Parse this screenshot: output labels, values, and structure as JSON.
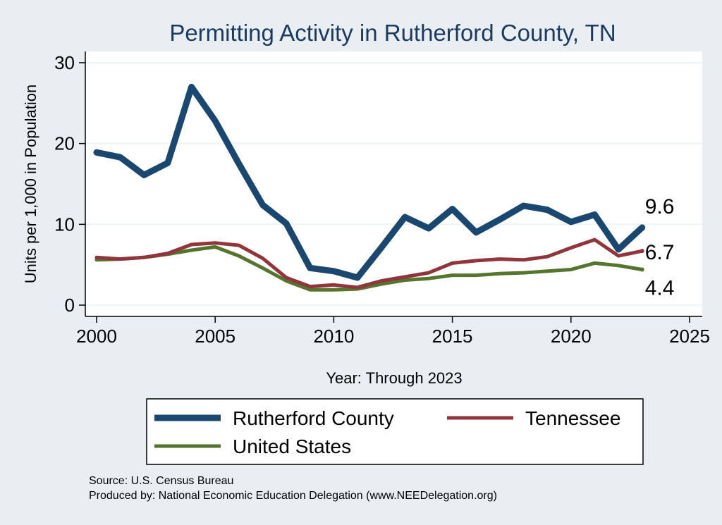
{
  "chart_data": {
    "type": "line",
    "title": "Permitting Activity in Rutherford County, TN",
    "xlabel": "Year: Through 2023",
    "ylabel": "Units per 1,000 in Population",
    "xlim": [
      2000,
      2025
    ],
    "ylim": [
      0,
      30
    ],
    "xticks": [
      2000,
      2005,
      2010,
      2015,
      2020,
      2025
    ],
    "yticks": [
      0,
      10,
      20,
      30
    ],
    "grid": true,
    "legend_position": "bottom",
    "x": [
      2000,
      2001,
      2002,
      2003,
      2004,
      2005,
      2006,
      2007,
      2008,
      2009,
      2010,
      2011,
      2012,
      2013,
      2014,
      2015,
      2016,
      2017,
      2018,
      2019,
      2020,
      2021,
      2022,
      2023
    ],
    "series": [
      {
        "name": "Rutherford County",
        "color": "#1a476f",
        "values": [
          18.9,
          18.3,
          16.1,
          17.6,
          27.0,
          22.8,
          17.5,
          12.4,
          10.1,
          4.6,
          4.2,
          3.4,
          7.1,
          10.9,
          9.5,
          11.9,
          9.0,
          10.6,
          12.3,
          11.8,
          10.3,
          11.2,
          6.9,
          9.6
        ],
        "end_label": "9.6"
      },
      {
        "name": "Tennessee",
        "color": "#90353b",
        "values": [
          5.9,
          5.7,
          5.9,
          6.4,
          7.5,
          7.7,
          7.4,
          5.8,
          3.4,
          2.3,
          2.5,
          2.2,
          3.0,
          3.5,
          4.0,
          5.2,
          5.5,
          5.7,
          5.6,
          6.0,
          7.1,
          8.1,
          6.1,
          6.7
        ],
        "end_label": "6.7"
      },
      {
        "name": "United States",
        "color": "#55752f",
        "values": [
          5.6,
          5.7,
          5.9,
          6.3,
          6.8,
          7.2,
          6.1,
          4.6,
          3.0,
          1.9,
          1.9,
          2.0,
          2.6,
          3.1,
          3.3,
          3.7,
          3.7,
          3.9,
          4.0,
          4.2,
          4.4,
          5.2,
          4.9,
          4.4
        ],
        "end_label": "4.4"
      }
    ],
    "notes": [
      "Source: U.S. Census Bureau",
      "Produced by: National Economic Education Delegation (www.NEEDelegation.org)"
    ]
  }
}
